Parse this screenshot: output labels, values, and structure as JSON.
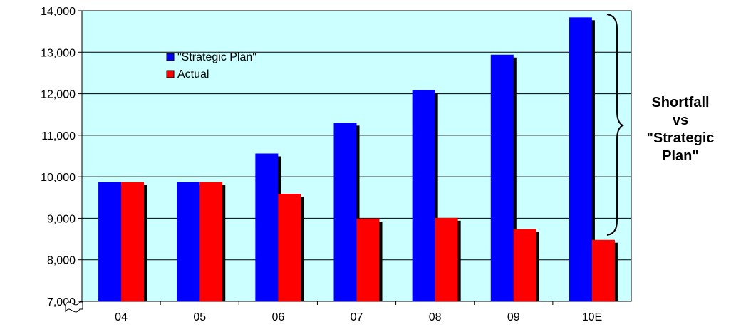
{
  "chart_data": {
    "type": "bar",
    "categories": [
      "04",
      "05",
      "06",
      "07",
      "08",
      "09",
      "10E"
    ],
    "series": [
      {
        "name": "\"Strategic Plan\"",
        "values": [
          9870,
          9870,
          10560,
          11300,
          12090,
          12940,
          13840
        ],
        "color": "#0000FF"
      },
      {
        "name": "Actual",
        "values": [
          9870,
          9870,
          9590,
          8990,
          9010,
          8740,
          8480
        ],
        "color": "#FF0000"
      }
    ],
    "ylim": [
      7000,
      14000
    ],
    "yticks": [
      "7,000",
      "8,000",
      "9,000",
      "10,000",
      "11,000",
      "12,000",
      "13,000",
      "14,000"
    ],
    "ytick_values": [
      7000,
      8000,
      9000,
      10000,
      11000,
      12000,
      13000,
      14000
    ],
    "grid": true,
    "legend_position": "top-left",
    "plot_background": "#CCFFFF",
    "axis_break": true,
    "annotation": {
      "lines": [
        "Shortfall",
        "vs",
        "\"Strategic",
        "Plan\""
      ],
      "category": "10E",
      "bracket": "right-brace"
    }
  }
}
